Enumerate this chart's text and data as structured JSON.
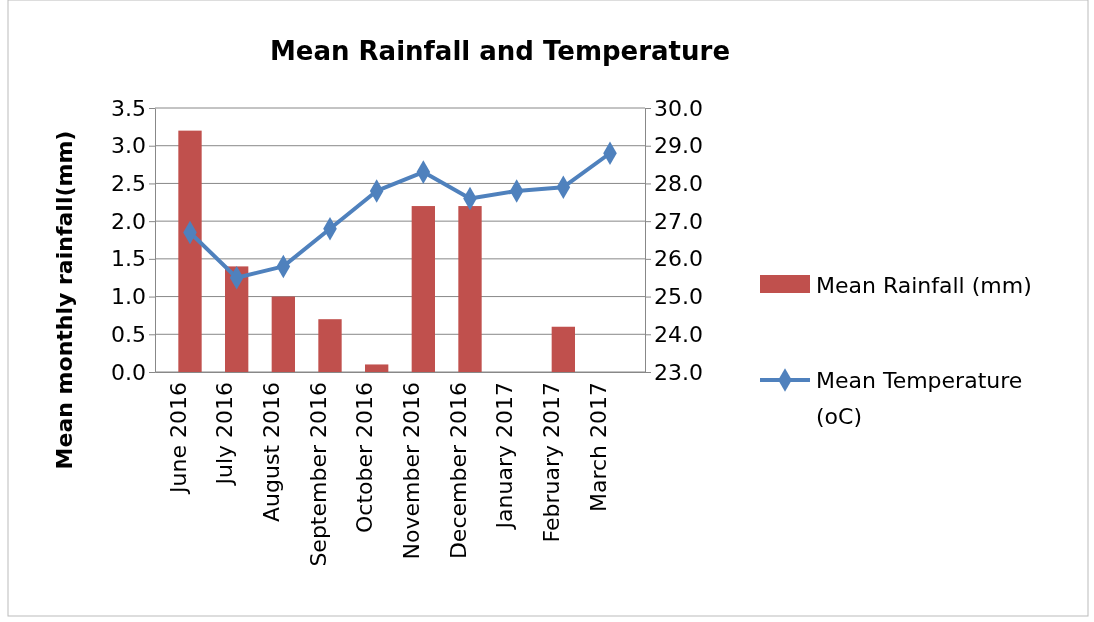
{
  "chart_data": {
    "type": "bar",
    "title": "Mean Rainfall and Temperature",
    "ylabel": "Mean monthly rainfall(mm)",
    "categories": [
      "June 2016",
      "July 2016",
      "August 2016",
      "September 2016",
      "October 2016",
      "November 2016",
      "December 2016",
      "January 2017",
      "February 2017",
      "March 2017"
    ],
    "series": [
      {
        "name": "Mean Rainfall (mm)",
        "color": "#c0504d",
        "values": [
          3.2,
          1.4,
          1.0,
          0.7,
          0.1,
          2.2,
          2.2,
          0,
          0.6,
          0
        ]
      },
      {
        "name": "Mean Temperature (oC)",
        "type": "line",
        "axis": "y2",
        "color": "#4f81bd",
        "marker": "diamond",
        "values": [
          26.7,
          25.5,
          25.8,
          26.8,
          27.8,
          28.3,
          27.6,
          27.8,
          27.9,
          28.8
        ]
      }
    ],
    "ylim": [
      0,
      3.5
    ],
    "yticks": [
      {
        "value": 0,
        "label": "0.0"
      },
      {
        "value": 0.5,
        "label": "0.5"
      },
      {
        "value": 1,
        "label": "1.0"
      },
      {
        "value": 1.5,
        "label": "1.5"
      },
      {
        "value": 2,
        "label": "2.0"
      },
      {
        "value": 2.5,
        "label": "2.5"
      },
      {
        "value": 3,
        "label": "3.0"
      },
      {
        "value": 3.5,
        "label": "3.5"
      }
    ],
    "y2lim": [
      23,
      30
    ],
    "y2ticks": [
      {
        "value": 23,
        "label": "23.0"
      },
      {
        "value": 24,
        "label": "24.0"
      },
      {
        "value": 25,
        "label": "25.0"
      },
      {
        "value": 26,
        "label": "26.0"
      },
      {
        "value": 27,
        "label": "27.0"
      },
      {
        "value": 28,
        "label": "28.0"
      },
      {
        "value": 29,
        "label": "29.0"
      },
      {
        "value": 30,
        "label": "30.0"
      }
    ],
    "grid": "y",
    "legend": "right"
  }
}
